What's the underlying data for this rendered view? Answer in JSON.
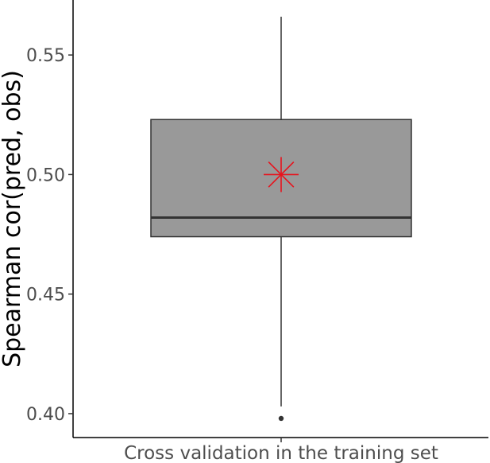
{
  "chart_data": {
    "type": "box",
    "title": "",
    "xlabel": "",
    "ylabel": "Spearman cor(pred, obs)",
    "categories": [
      "Cross validation in the training set"
    ],
    "ylim": [
      0.39,
      0.573
    ],
    "yticks": [
      0.4,
      0.45,
      0.5,
      0.55
    ],
    "ytick_labels": [
      "0.40",
      "0.45",
      "0.50",
      "0.55"
    ],
    "grid": false,
    "legend": "none",
    "boxes": [
      {
        "category": "Cross validation in the training set",
        "whisker_low": 0.403,
        "q1": 0.474,
        "median": 0.482,
        "q3": 0.523,
        "whisker_high": 0.566,
        "outliers": [
          0.398
        ],
        "mean": 0.5
      }
    ],
    "colors": {
      "box_fill": "#999999",
      "box_stroke": "#333333",
      "mean_marker": "#e8121c",
      "axis": "#000000"
    }
  }
}
